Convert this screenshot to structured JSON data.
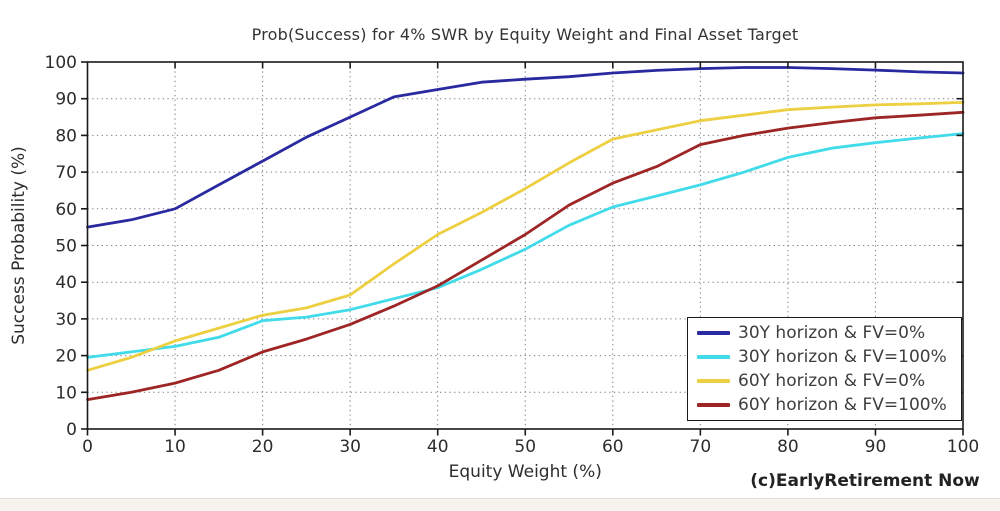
{
  "page": {
    "copyright": "(c)EarlyRetirement Now"
  },
  "chart_data": {
    "type": "line",
    "title": "Prob(Success) for 4% SWR by Equity Weight and Final Asset Target",
    "xlabel": "Equity Weight (%)",
    "ylabel": "Success Probability (%)",
    "xlim": [
      0,
      100
    ],
    "ylim": [
      0,
      100
    ],
    "x_ticks": [
      0,
      10,
      20,
      30,
      40,
      50,
      60,
      70,
      80,
      90,
      100
    ],
    "y_ticks": [
      0,
      10,
      20,
      30,
      40,
      50,
      60,
      70,
      80,
      90,
      100
    ],
    "grid": "dotted",
    "legend_position": "bottom-right",
    "x": [
      0,
      5,
      10,
      15,
      20,
      25,
      30,
      35,
      40,
      45,
      50,
      55,
      60,
      65,
      70,
      75,
      80,
      85,
      90,
      95,
      100
    ],
    "series": [
      {
        "name": "30Y horizon & FV=0%",
        "color": "#2a2aa0",
        "values": [
          55,
          57,
          60,
          66.5,
          73,
          79.5,
          85,
          90.5,
          92.5,
          94.5,
          95.3,
          96,
          97,
          97.7,
          98.2,
          98.5,
          98.5,
          98.2,
          97.8,
          97.3,
          97
        ]
      },
      {
        "name": "30Y horizon & FV=100%",
        "color": "#41dbea",
        "values": [
          19.5,
          21,
          22.5,
          25,
          29.5,
          30.5,
          32.5,
          35.5,
          38.5,
          43.5,
          49,
          55.5,
          60.5,
          63.5,
          66.5,
          70,
          74,
          76.5,
          78,
          79.3,
          80.5
        ]
      },
      {
        "name": "60Y horizon & FV=0%",
        "color": "#edcf42",
        "values": [
          16,
          19.5,
          24,
          27.5,
          31,
          33,
          36.5,
          45,
          53,
          59,
          65.5,
          72.5,
          79,
          81.5,
          84,
          85.5,
          87,
          87.7,
          88.3,
          88.6,
          89
        ]
      },
      {
        "name": "60Y horizon & FV=100%",
        "color": "#9e2525",
        "values": [
          8,
          10,
          12.5,
          16,
          21,
          24.5,
          28.5,
          33.5,
          39,
          46,
          53,
          61,
          67,
          71.5,
          77.5,
          80,
          82,
          83.5,
          84.8,
          85.5,
          86.3
        ]
      }
    ]
  }
}
